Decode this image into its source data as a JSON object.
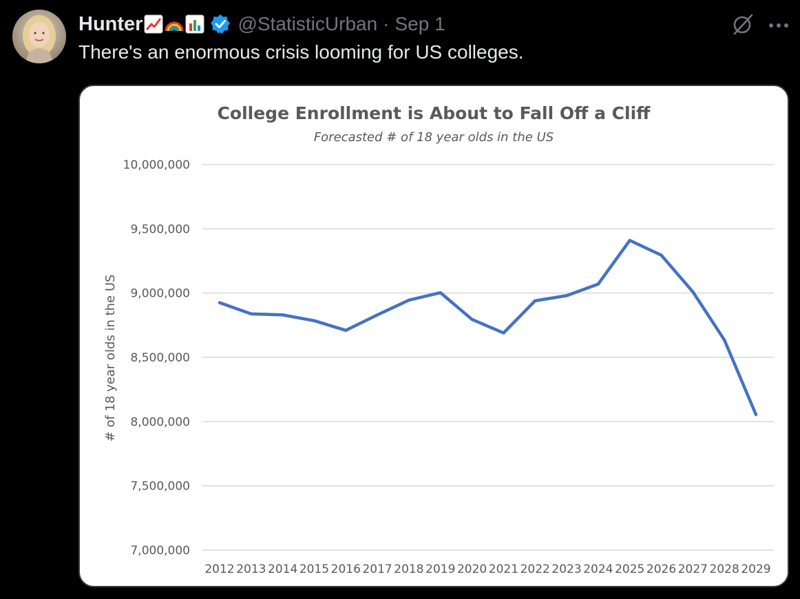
{
  "tweet": {
    "author_name": "Hunter",
    "emojis": [
      "chart-increasing-emoji",
      "rainbow-emoji",
      "bar-chart-emoji"
    ],
    "handle": "@StatisticUrban",
    "separator": "·",
    "date": "Sep 1",
    "text": "There's an enormous crisis looming for US colleges.",
    "more_label": "···"
  },
  "colors": {
    "background": "#000000",
    "text_primary": "#e7e9ea",
    "text_secondary": "#71767b",
    "verified_badge": "#1d9bf0",
    "series_line": "#4472c4",
    "gridline": "#d9d9d9",
    "chart_text": "#595959"
  },
  "chart_data": {
    "type": "line",
    "title": "College Enrollment is About to Fall Off a Cliff",
    "subtitle": "Forecasted # of 18 year olds in the US",
    "xlabel": "",
    "ylabel": "# of 18 year olds in the US",
    "ylim": [
      7000000,
      10000000
    ],
    "y_ticks": [
      7000000,
      7500000,
      8000000,
      8500000,
      9000000,
      9500000,
      10000000
    ],
    "y_tick_labels": [
      "7,000,000",
      "7,500,000",
      "8,000,000",
      "8,500,000",
      "9,000,000",
      "9,500,000",
      "10,000,000"
    ],
    "grid": true,
    "categories": [
      "2012",
      "2013",
      "2014",
      "2015",
      "2016",
      "2017",
      "2018",
      "2019",
      "2020",
      "2021",
      "2022",
      "2023",
      "2024",
      "2025",
      "2026",
      "2027",
      "2028",
      "2029"
    ],
    "series": [
      {
        "name": "18 year olds",
        "values": [
          8925000,
          8838000,
          8830000,
          8785000,
          8710000,
          8830000,
          8945000,
          9003000,
          8795000,
          8690000,
          8940000,
          8980000,
          9070000,
          9410000,
          9295000,
          9010000,
          8635000,
          8055000
        ]
      }
    ]
  }
}
